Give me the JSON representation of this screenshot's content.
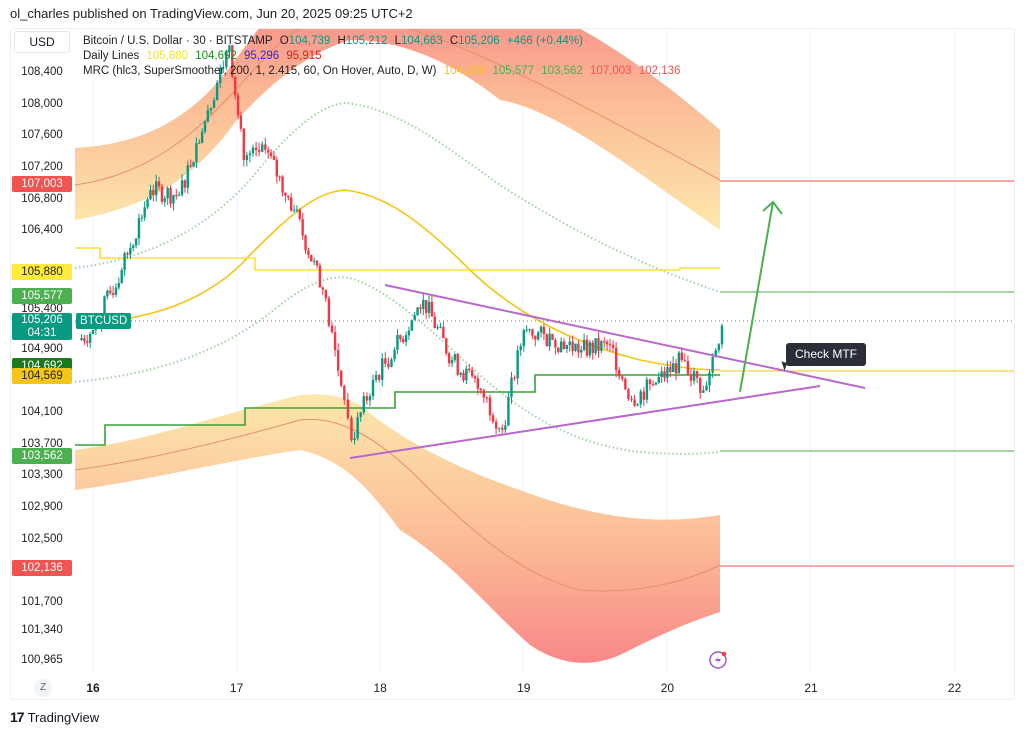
{
  "publisher_line": "ol_charles published on TradingView.com, Jun 20, 2025 09:25 UTC+2",
  "currency": "USD",
  "legend": {
    "symbol": "Bitcoin / U.S. Dollar · 30 · BITSTAMP",
    "o_label": "O",
    "o": "104,739",
    "h_label": "H",
    "h": "105,212",
    "l_label": "L",
    "l": "104,663",
    "c_label": "C",
    "c": "105,206",
    "change": "+466 (+0.44%)",
    "daily_label": "Daily Lines",
    "daily": [
      "105,880",
      "104,692",
      "95,296",
      "95,915"
    ],
    "mrc_label": "MRC (hlc3, SuperSmoother, 200, 1, 2.415, 60, On Hover, Auto, D, W)",
    "mrc": [
      "104,569",
      "105,577",
      "103,562",
      "107,003",
      "102,136"
    ]
  },
  "badges": [
    {
      "text": "107,003",
      "color": "#f05350",
      "price": 107003
    },
    {
      "text": "105,880",
      "color": "#ffeb3b",
      "price": 105880,
      "dark": true
    },
    {
      "text": "105,577",
      "color": "#4caf50",
      "price": 105577
    },
    {
      "text": "104,692",
      "color": "#1b7a1b",
      "price": 104692
    },
    {
      "text": "104,569",
      "color": "#f5c518",
      "price": 104569,
      "dark": true
    },
    {
      "text": "103,562",
      "color": "#4caf50",
      "price": 103562
    },
    {
      "text": "102,136",
      "color": "#f05350",
      "price": 102136
    }
  ],
  "last": {
    "price": "105,206",
    "countdown": "04:31",
    "ticker": "BTCUSD",
    "color": "#089981"
  },
  "annotation": "Check MTF",
  "footer": "TradingView",
  "z_label": "Z",
  "chart_data": {
    "type": "candlestick",
    "title": "Bitcoin / U.S. Dollar · 30 · BITSTAMP",
    "y_ticks": [
      108400,
      108000,
      107600,
      107200,
      106800,
      106400,
      105400,
      104900,
      104100,
      103700,
      103300,
      102900,
      102500,
      101700,
      101340,
      100965
    ],
    "y_tick_labels": [
      "108,400",
      "108,000",
      "107,600",
      "107,200",
      "106,800",
      "106,400",
      "105,400",
      "104,900",
      "104,100",
      "103,700",
      "103,300",
      "102,900",
      "102,500",
      "101,700",
      "101,340",
      "100,965"
    ],
    "x_ticks": [
      16,
      17,
      18,
      19,
      20,
      21,
      22
    ],
    "x_tick_labels": [
      "16",
      "17",
      "18",
      "19",
      "20",
      "21",
      "22"
    ],
    "price_path": {
      "day": [
        15.9,
        16.0,
        16.2,
        16.4,
        16.6,
        16.8,
        16.95,
        17.05,
        17.2,
        17.4,
        17.6,
        17.75,
        17.8,
        17.95,
        18.1,
        18.3,
        18.5,
        18.7,
        18.85,
        19.0,
        19.2,
        19.4,
        19.6,
        19.75,
        19.9,
        20.1,
        20.25,
        20.38
      ],
      "close": [
        105025,
        105150,
        105910,
        106920,
        106860,
        107930,
        108750,
        107300,
        107430,
        106670,
        105660,
        104270,
        103760,
        104520,
        104900,
        105530,
        104770,
        104390,
        103890,
        105150,
        105025,
        104900,
        104960,
        104270,
        104460,
        104770,
        104390,
        105206
      ]
    },
    "horizontal_levels": [
      107003,
      105880,
      105577,
      104569,
      103562,
      102136
    ],
    "last_price": 105206
  }
}
